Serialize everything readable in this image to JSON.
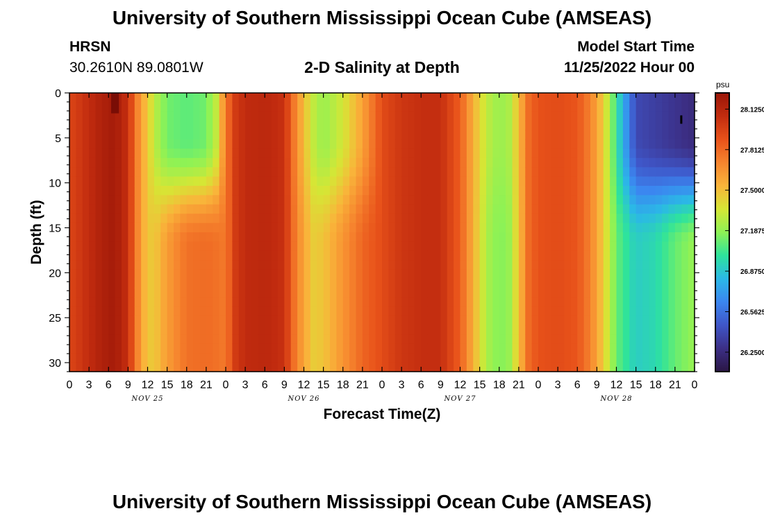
{
  "page": {
    "title": "University of Southern Mississippi Ocean Cube (AMSEAS)",
    "title_repeat": "University of Southern Mississippi Ocean Cube (AMSEAS)",
    "station": "HRSN",
    "coords": "30.2610N  89.0801W",
    "subtitle": "2-D Salinity at Depth",
    "start_label": "Model Start Time",
    "start_value": "11/25/2022 Hour 00"
  },
  "colors": {
    "palette": [
      "#2a1644",
      "#3c2f86",
      "#3f56c8",
      "#3b86f0",
      "#2bb8e6",
      "#2ee39c",
      "#8ef255",
      "#d6e635",
      "#f9b43a",
      "#f6842e",
      "#e8521a",
      "#c22c0f",
      "#9a1608"
    ]
  },
  "chart_data": {
    "type": "heatmap",
    "title": "2-D Salinity at Depth",
    "xlabel": "Forecast Time(Z)",
    "ylabel": "Depth (ft)",
    "x_tick_labels": [
      "0",
      "3",
      "6",
      "9",
      "12",
      "15",
      "18",
      "21",
      "0",
      "3",
      "6",
      "9",
      "12",
      "15",
      "18",
      "21",
      "0",
      "3",
      "6",
      "9",
      "12",
      "15",
      "18",
      "21",
      "0",
      "3",
      "6",
      "9",
      "12",
      "15",
      "18",
      "21",
      "0"
    ],
    "x_range_hours": [
      0,
      96
    ],
    "day_labels": [
      "NOV 25",
      "NOV 26",
      "NOV 27",
      "NOV 28"
    ],
    "y_range": [
      0,
      31
    ],
    "y_ticks": [
      0,
      5,
      10,
      15,
      20,
      25,
      30
    ],
    "colorbar": {
      "unit": "psu",
      "range": [
        26.1,
        28.25
      ],
      "ticks": [
        "28.1250",
        "27.8125",
        "27.5000",
        "27.1875",
        "26.8750",
        "26.5625",
        "26.2500"
      ]
    },
    "surface_salinity_by_hour": [
      [
        0,
        27.95
      ],
      [
        3,
        28.07
      ],
      [
        5,
        28.16
      ],
      [
        7,
        28.2
      ],
      [
        9,
        28.05
      ],
      [
        10.5,
        27.7
      ],
      [
        12,
        27.45
      ],
      [
        13.5,
        27.25
      ],
      [
        15,
        27.12
      ],
      [
        18,
        27.08
      ],
      [
        21,
        27.12
      ],
      [
        22.5,
        27.3
      ],
      [
        24,
        27.75
      ],
      [
        25.5,
        28.0
      ],
      [
        27,
        28.08
      ],
      [
        30,
        28.1
      ],
      [
        33,
        28.05
      ],
      [
        34.5,
        27.75
      ],
      [
        36,
        27.5
      ],
      [
        37.5,
        27.3
      ],
      [
        39,
        27.2
      ],
      [
        42,
        27.35
      ],
      [
        45,
        27.6
      ],
      [
        48,
        27.92
      ],
      [
        51,
        28.02
      ],
      [
        54,
        28.06
      ],
      [
        57,
        28.06
      ],
      [
        60,
        27.85
      ],
      [
        62,
        27.55
      ],
      [
        64,
        27.3
      ],
      [
        66,
        27.2
      ],
      [
        67.5,
        27.25
      ],
      [
        69,
        27.5
      ],
      [
        70.5,
        27.8
      ],
      [
        72,
        27.9
      ],
      [
        75,
        27.92
      ],
      [
        78,
        27.88
      ],
      [
        80,
        27.72
      ],
      [
        82,
        27.45
      ],
      [
        84,
        27.0
      ],
      [
        87,
        26.4
      ],
      [
        93,
        26.3
      ],
      [
        96,
        26.25
      ]
    ],
    "bottom_salinity_by_hour": [
      [
        0,
        27.95
      ],
      [
        3,
        28.07
      ],
      [
        5,
        28.16
      ],
      [
        7,
        28.2
      ],
      [
        9,
        28.05
      ],
      [
        10.5,
        27.7
      ],
      [
        12,
        27.45
      ],
      [
        13.5,
        27.5
      ],
      [
        15,
        27.62
      ],
      [
        18,
        27.78
      ],
      [
        21,
        27.8
      ],
      [
        22.5,
        27.78
      ],
      [
        24,
        27.75
      ],
      [
        25.5,
        28.0
      ],
      [
        27,
        28.08
      ],
      [
        30,
        28.1
      ],
      [
        33,
        28.05
      ],
      [
        34.5,
        27.78
      ],
      [
        36,
        27.58
      ],
      [
        37.5,
        27.45
      ],
      [
        39,
        27.48
      ],
      [
        42,
        27.65
      ],
      [
        45,
        27.82
      ],
      [
        48,
        27.92
      ],
      [
        51,
        28.02
      ],
      [
        54,
        28.06
      ],
      [
        57,
        28.06
      ],
      [
        60,
        27.85
      ],
      [
        62,
        27.55
      ],
      [
        64,
        27.25
      ],
      [
        66,
        27.15
      ],
      [
        67.5,
        27.2
      ],
      [
        69,
        27.48
      ],
      [
        70.5,
        27.8
      ],
      [
        72,
        27.9
      ],
      [
        75,
        27.92
      ],
      [
        78,
        27.88
      ],
      [
        80,
        27.72
      ],
      [
        82,
        27.45
      ],
      [
        84,
        27.1
      ],
      [
        87,
        26.9
      ],
      [
        90,
        26.95
      ],
      [
        93,
        27.1
      ],
      [
        96,
        27.2
      ]
    ]
  }
}
